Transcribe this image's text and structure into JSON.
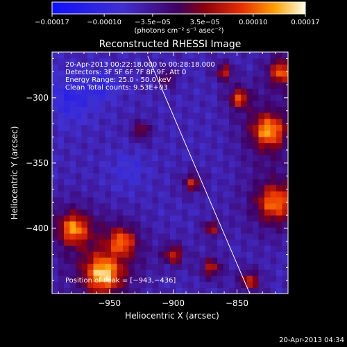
{
  "chart_data": {
    "type": "heatmap",
    "title": "Reconstructed RHESSI Image",
    "xlabel": "Heliocentric X (arcsec)",
    "ylabel": "Heliocentric Y (arcsec)",
    "xlim": [
      -995,
      -810
    ],
    "ylim": [
      -450,
      -265
    ],
    "x_ticks": [
      -950,
      -900,
      -850
    ],
    "x_tick_labels": [
      "−950",
      "−900",
      "−850"
    ],
    "y_ticks": [
      -300,
      -350,
      -400
    ],
    "y_tick_labels": [
      "−300",
      "−350",
      "−400"
    ],
    "colorbar": {
      "range": [
        -0.00017,
        0.00017
      ],
      "ticks": [
        -0.00017,
        -0.0001,
        -3.5e-05,
        3.5e-05,
        0.0001,
        0.00017
      ],
      "tick_labels": [
        "−0.00017",
        "−0.00010",
        "−3.5e−05",
        "3.5e−05",
        "0.00010",
        "0.00017"
      ],
      "units": "(photons cm⁻² s⁻¹ asec⁻²)"
    },
    "annotations": [
      "20-Apr-2013 00:22:18.000 to 00:28:18.000",
      "Detectors: 3F 5F 6F 7F 8F 9F, Att 0",
      "Energy Range: 25.0 - 50.0 keV",
      "Clean     Total counts: 9.53E+03"
    ],
    "position_label": "Position of Peak = [−943,−436]",
    "peak": [
      -943,
      -436
    ],
    "limb_line": [
      [
        -920,
        -268
      ],
      [
        -840,
        -450
      ]
    ],
    "grid_size": 40,
    "bright_features": [
      {
        "x": -955,
        "y": -435,
        "intensity": 1.0,
        "spread": 22
      },
      {
        "x": -978,
        "y": -400,
        "intensity": 0.85,
        "spread": 18
      },
      {
        "x": -940,
        "y": -410,
        "intensity": 0.7,
        "spread": 16
      },
      {
        "x": -825,
        "y": -325,
        "intensity": 0.9,
        "spread": 20
      },
      {
        "x": -815,
        "y": -280,
        "intensity": 0.75,
        "spread": 14
      },
      {
        "x": -820,
        "y": -380,
        "intensity": 0.8,
        "spread": 22
      },
      {
        "x": -848,
        "y": -300,
        "intensity": 0.7,
        "spread": 10
      },
      {
        "x": -860,
        "y": -280,
        "intensity": 0.6,
        "spread": 8
      },
      {
        "x": -885,
        "y": -365,
        "intensity": 0.55,
        "spread": 9
      },
      {
        "x": -900,
        "y": -420,
        "intensity": 0.6,
        "spread": 10
      },
      {
        "x": -870,
        "y": -430,
        "intensity": 0.55,
        "spread": 10
      },
      {
        "x": -840,
        "y": -440,
        "intensity": 0.6,
        "spread": 10
      },
      {
        "x": -925,
        "y": -325,
        "intensity": 0.45,
        "spread": 9
      },
      {
        "x": -905,
        "y": -285,
        "intensity": 0.4,
        "spread": 8
      },
      {
        "x": -870,
        "y": -400,
        "intensity": 0.5,
        "spread": 8
      }
    ],
    "dark_features": [
      {
        "x": -980,
        "y": -300,
        "intensity": 0.7,
        "spread": 18
      },
      {
        "x": -955,
        "y": -290,
        "intensity": 0.55,
        "spread": 12
      },
      {
        "x": -935,
        "y": -355,
        "intensity": 0.4,
        "spread": 14
      }
    ]
  },
  "footer": {
    "timestamp": "20-Apr-2013 04:34"
  },
  "colors": {
    "background": "#000000",
    "text": "#ffffff",
    "limb_line": "#ffffff"
  }
}
